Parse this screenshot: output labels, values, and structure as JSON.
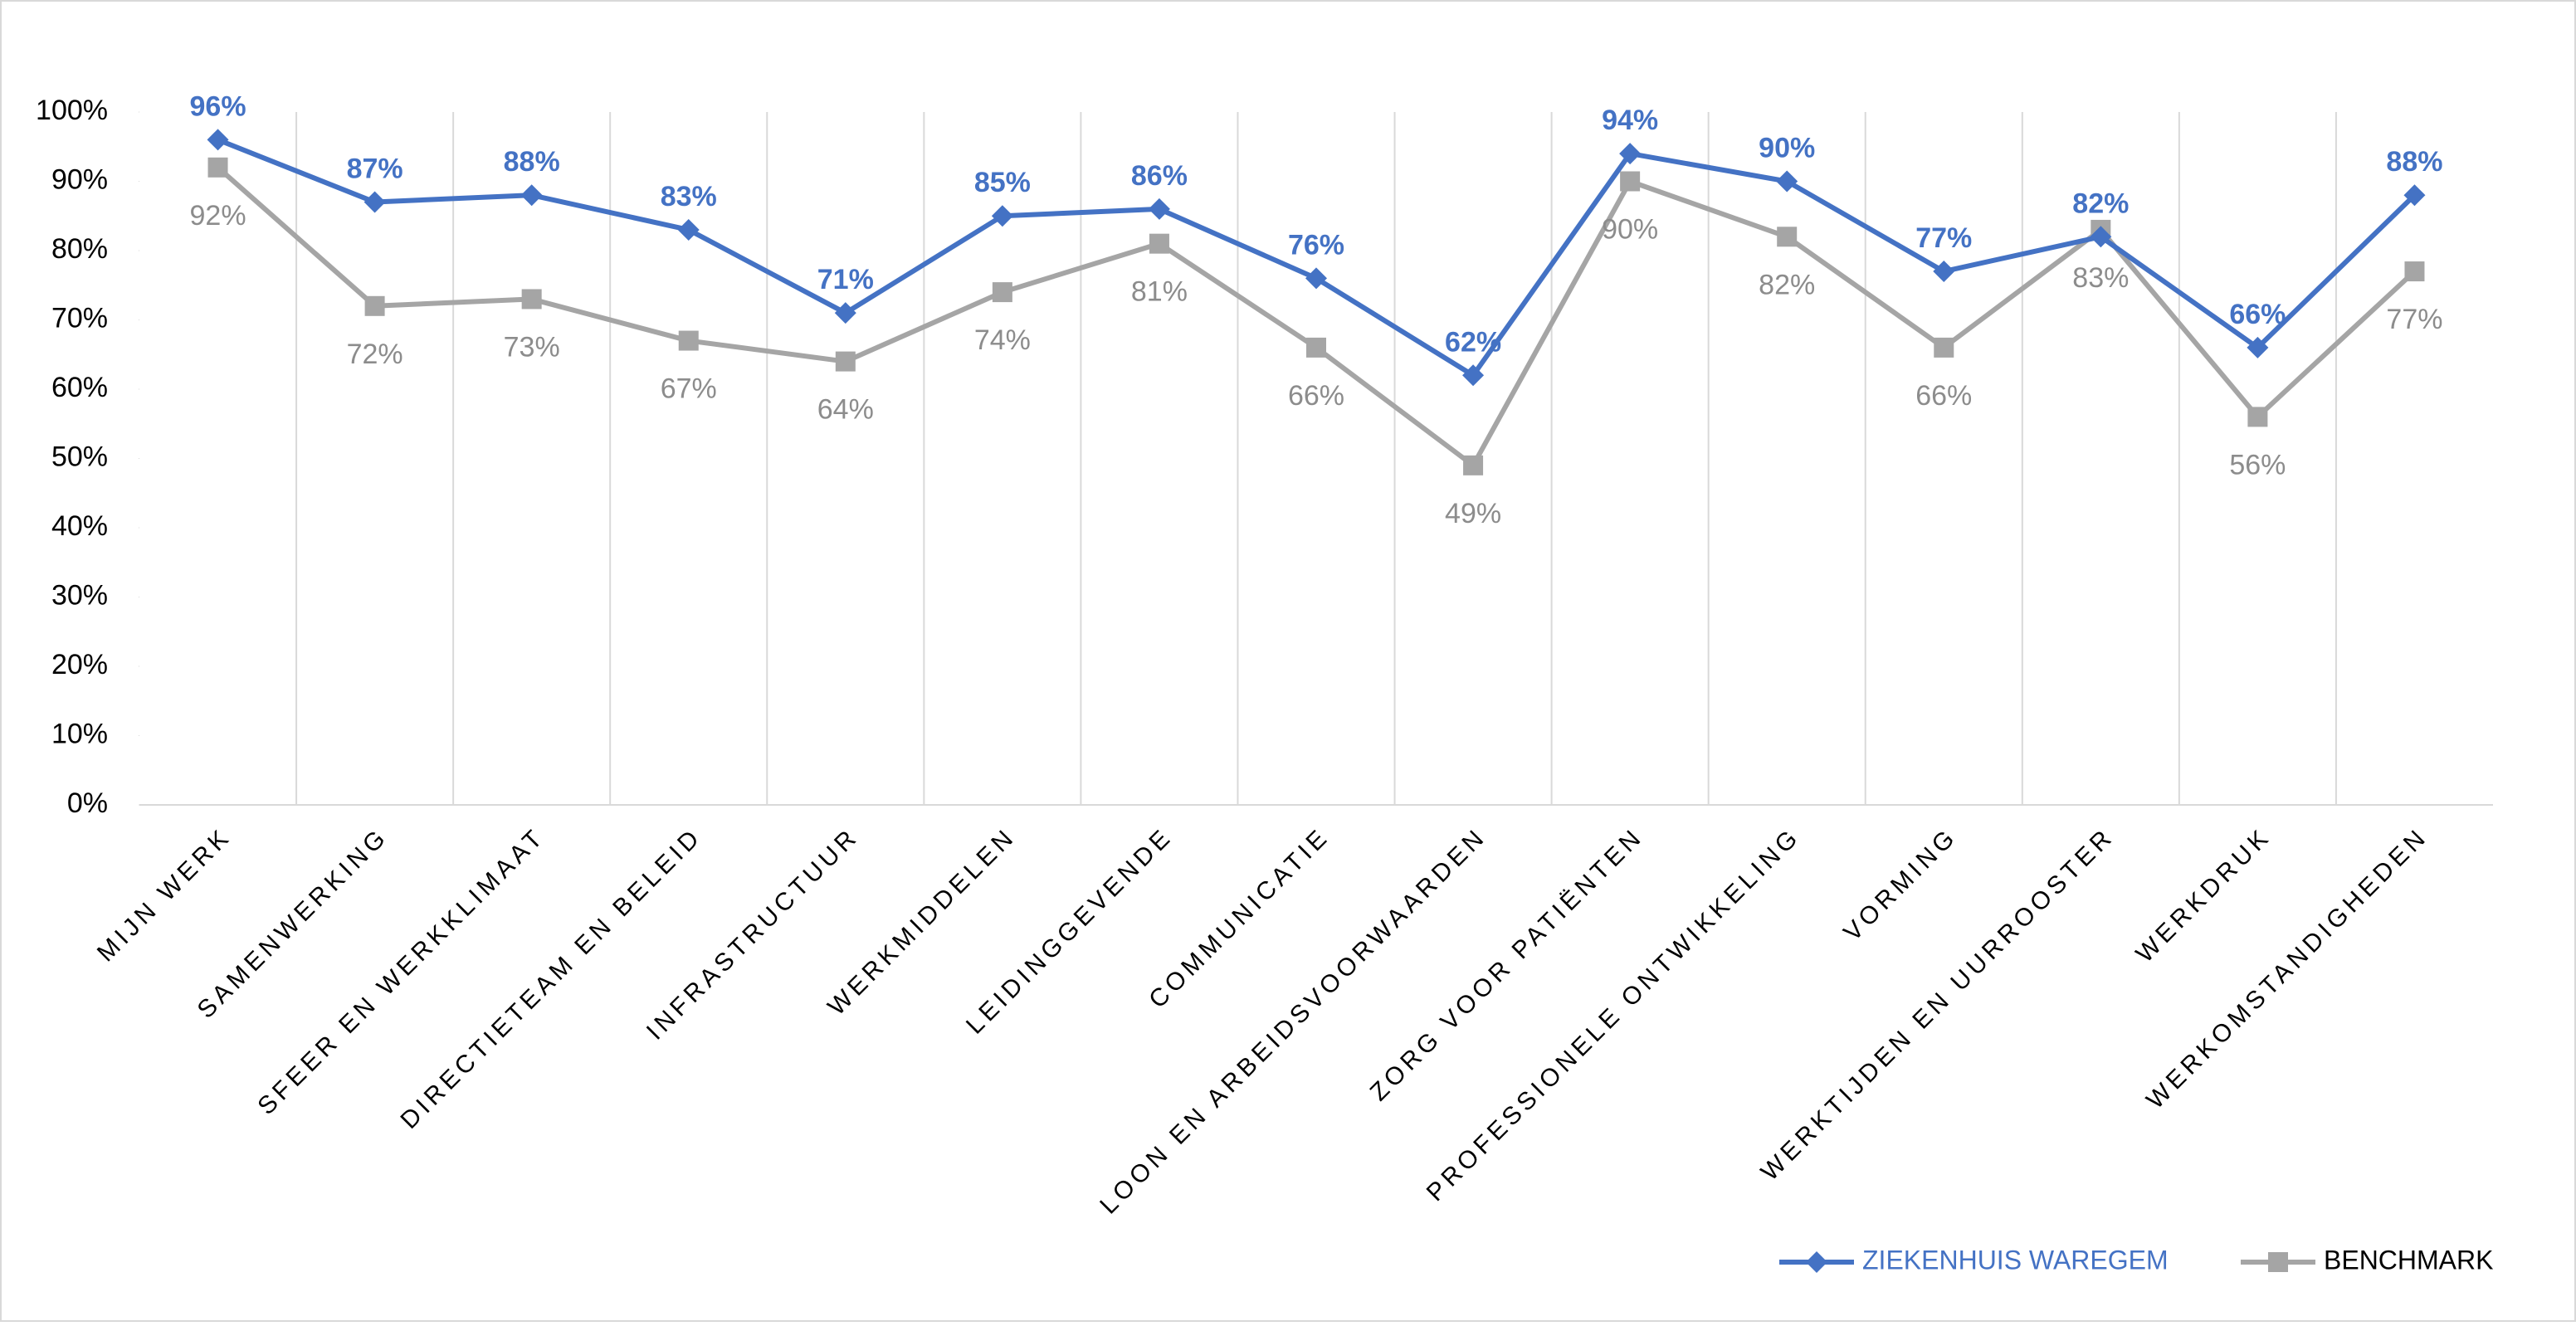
{
  "chart_data": {
    "type": "line",
    "categories": [
      "MIJN WERK",
      "SAMENWERKING",
      "SFEER EN WERKKLIMAAT",
      "DIRECTIETEAM EN BELEID",
      "INFRASTRUCTUUR",
      "WERKMIDDELEN",
      "LEIDINGGEVENDE",
      "COMMUNICATIE",
      "LOON EN ARBEIDSVOORWAARDEN",
      "ZORG VOOR PATIËNTEN",
      "PROFESSIONELE ONTWIKKELING",
      "VORMING",
      "WERKTIJDEN EN UURROOSTER",
      "WERKDRUK",
      "WERKOMSTANDIGHEDEN"
    ],
    "series": [
      {
        "name": "ZIEKENHUIS WAREGEM",
        "color": "#4472c4",
        "marker": "diamond",
        "values": [
          96,
          87,
          88,
          83,
          71,
          85,
          86,
          76,
          62,
          94,
          90,
          77,
          82,
          66,
          88
        ],
        "value_labels": [
          "96%",
          "87%",
          "88%",
          "83%",
          "71%",
          "85%",
          "86%",
          "76%",
          "62%",
          "94%",
          "90%",
          "77%",
          "82%",
          "66%",
          "88%"
        ]
      },
      {
        "name": "BENCHMARK",
        "color": "#a5a5a5",
        "marker": "square",
        "values": [
          92,
          72,
          73,
          67,
          64,
          74,
          81,
          66,
          49,
          90,
          82,
          66,
          83,
          56,
          77
        ],
        "value_labels": [
          "92%",
          "72%",
          "73%",
          "67%",
          "64%",
          "74%",
          "81%",
          "66%",
          "49%",
          "90%",
          "82%",
          "66%",
          "83%",
          "56%",
          "77%"
        ]
      }
    ],
    "ylim": [
      0,
      100
    ],
    "yticks": [
      {
        "value": 0,
        "label": "0%"
      },
      {
        "value": 10,
        "label": "10%"
      },
      {
        "value": 20,
        "label": "20%"
      },
      {
        "value": 30,
        "label": "30%"
      },
      {
        "value": 40,
        "label": "40%"
      },
      {
        "value": 50,
        "label": "50%"
      },
      {
        "value": 60,
        "label": "60%"
      },
      {
        "value": 70,
        "label": "70%"
      },
      {
        "value": 80,
        "label": "80%"
      },
      {
        "value": 90,
        "label": "90%"
      },
      {
        "value": 100,
        "label": "100%"
      }
    ],
    "grid": true,
    "legend": "bottom-right"
  }
}
